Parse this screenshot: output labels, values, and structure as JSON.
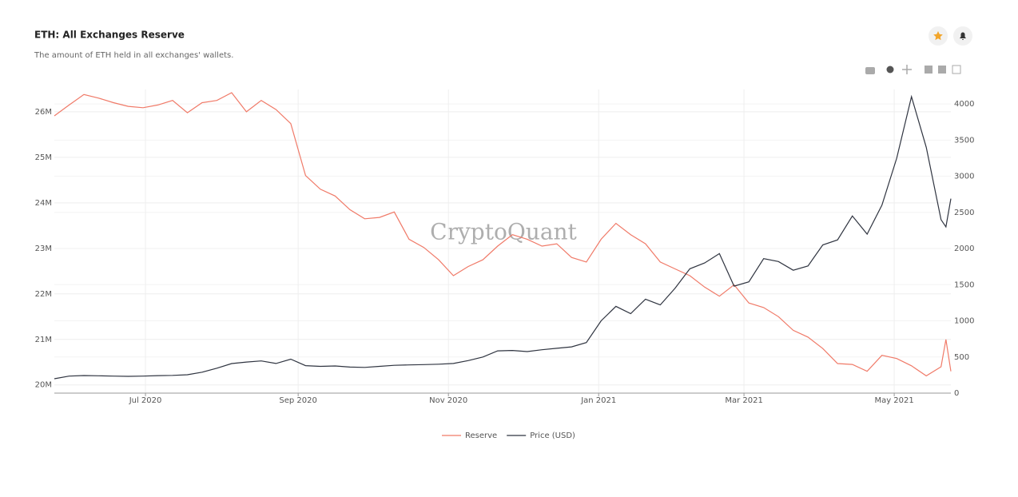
{
  "chart_data": {
    "type": "line",
    "title": "ETH: All Exchanges Reserve",
    "subtitle": "The amount of ETH held in all exchanges' wallets.",
    "watermark": "CryptoQuant",
    "x": [
      -37,
      -31,
      -25,
      -19,
      -13,
      -7,
      -1,
      5,
      11,
      17,
      23,
      29,
      35,
      41,
      47,
      53,
      59,
      65,
      71,
      77,
      83,
      89,
      95,
      101,
      107,
      113,
      119,
      125,
      131,
      137,
      143,
      149,
      155,
      161,
      167,
      173,
      179,
      185,
      191,
      197,
      203,
      209,
      215,
      221,
      227,
      233,
      239,
      245,
      251,
      257,
      263,
      269,
      275,
      281,
      287,
      293,
      299,
      305,
      311,
      317,
      323,
      325,
      327
    ],
    "xlim": [
      -37,
      327
    ],
    "xticks": [
      {
        "value": 0,
        "label": "Jul 2020"
      },
      {
        "value": 62,
        "label": "Sep 2020"
      },
      {
        "value": 123,
        "label": "Nov 2020"
      },
      {
        "value": 184,
        "label": "Jan 2021"
      },
      {
        "value": 243,
        "label": "Mar 2021"
      },
      {
        "value": 304,
        "label": "May 2021"
      }
    ],
    "ylim": [
      19820000,
      26490000
    ],
    "yticks": [
      {
        "value": 20000000,
        "label": "20M"
      },
      {
        "value": 21000000,
        "label": "21M"
      },
      {
        "value": 22000000,
        "label": "22M"
      },
      {
        "value": 23000000,
        "label": "23M"
      },
      {
        "value": 24000000,
        "label": "24M"
      },
      {
        "value": 25000000,
        "label": "25M"
      },
      {
        "value": 26000000,
        "label": "26M"
      }
    ],
    "y2lim": [
      0,
      4200
    ],
    "y2ticks": [
      0,
      500,
      1000,
      1500,
      2000,
      2500,
      3000,
      3500,
      4000
    ],
    "grid": true,
    "legend": "bottom",
    "series": [
      {
        "name": "Reserve",
        "color": "#f07a68",
        "values": [
          25910000,
          26150000,
          26380000,
          26300000,
          26200000,
          26120000,
          26090000,
          26150000,
          26250000,
          25980000,
          26200000,
          26250000,
          26420000,
          26000000,
          26250000,
          26050000,
          25740000,
          24600000,
          24300000,
          24150000,
          23850000,
          23650000,
          23680000,
          23800000,
          23200000,
          23020000,
          22750000,
          22400000,
          22600000,
          22750000,
          23050000,
          23300000,
          23200000,
          23050000,
          23100000,
          22800000,
          22700000,
          23200000,
          23550000,
          23300000,
          23100000,
          22700000,
          22550000,
          22400000,
          22150000,
          21950000,
          22200000,
          21800000,
          21700000,
          21500000,
          21200000,
          21050000,
          20800000,
          20470000,
          20450000,
          20300000,
          20650000,
          20580000,
          20420000,
          20200000,
          20400000,
          21000000,
          20300000
        ]
      },
      {
        "name": "Price (USD)",
        "color": "#2f3440",
        "axis": "y2",
        "values": [
          199,
          235,
          243,
          240,
          235,
          232,
          235,
          242,
          245,
          254,
          290,
          345,
          409,
          430,
          445,
          410,
          470,
          380,
          370,
          376,
          360,
          356,
          370,
          385,
          390,
          395,
          400,
          410,
          450,
          500,
          585,
          590,
          575,
          600,
          620,
          640,
          700,
          1000,
          1200,
          1100,
          1300,
          1220,
          1450,
          1720,
          1800,
          1930,
          1480,
          1540,
          1860,
          1820,
          1700,
          1760,
          2050,
          2120,
          2450,
          2200,
          2600,
          3250,
          4100,
          3400,
          2400,
          2300,
          2690
        ]
      }
    ]
  }
}
